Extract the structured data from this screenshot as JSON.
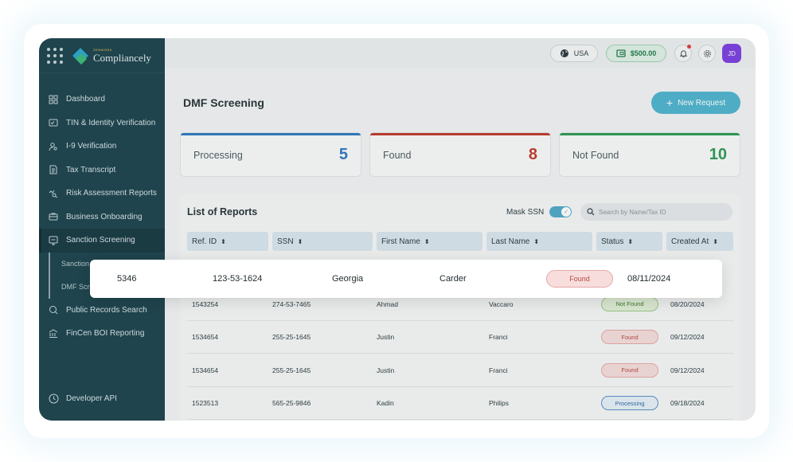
{
  "brand": {
    "small": "ZENWORK",
    "name": "Compliancely"
  },
  "sidebar": {
    "items": [
      {
        "label": "Dashboard",
        "icon": "dashboard-icon"
      },
      {
        "label": "TIN & Identity Verification",
        "icon": "id-card-icon"
      },
      {
        "label": "I-9 Verification",
        "icon": "user-search-icon"
      },
      {
        "label": "Tax Transcript",
        "icon": "document-icon"
      },
      {
        "label": "Risk Assessment Reports",
        "icon": "risk-search-icon"
      },
      {
        "label": "Business Onboarding",
        "icon": "briefcase-icon"
      },
      {
        "label": "Sanction Screening",
        "icon": "screening-icon"
      }
    ],
    "sub_items": [
      "Sanction",
      "DMF Scre"
    ],
    "more_items": [
      {
        "label": "Public Records Search",
        "icon": "globe-search-icon"
      },
      {
        "label": "FinCen BOI Reporting",
        "icon": "bank-icon"
      }
    ],
    "developer": "Developer API"
  },
  "topbar": {
    "country": "USA",
    "balance": "$500.00",
    "avatar": "JD"
  },
  "page": {
    "title": "DMF Screening",
    "new_request": "New Request"
  },
  "stats": [
    {
      "label": "Processing",
      "value": "5"
    },
    {
      "label": "Found",
      "value": "8"
    },
    {
      "label": "Not Found",
      "value": "10"
    }
  ],
  "reports": {
    "title": "List of Reports",
    "mask_label": "Mask SSN",
    "search_placeholder": "Search by Name/Tax ID",
    "columns": [
      "Ref. ID",
      "SSN",
      "First Name",
      "Last Name",
      "Status",
      "Created At"
    ],
    "rows": [
      {
        "ref": "1543254",
        "ssn": "274-53-7465",
        "first": "Ahmad",
        "last": "Vaccaro",
        "status": "Not Found",
        "created": "08/20/2024"
      },
      {
        "ref": "1534654",
        "ssn": "255-25-1645",
        "first": "Justin",
        "last": "Franci",
        "status": "Found",
        "created": "09/12/2024"
      },
      {
        "ref": "1534654",
        "ssn": "255-25-1645",
        "first": "Justin",
        "last": "Franci",
        "status": "Found",
        "created": "09/12/2024"
      },
      {
        "ref": "1523513",
        "ssn": "565-25-9846",
        "first": "Kadin",
        "last": "Philips",
        "status": "Processing",
        "created": "09/18/2024"
      }
    ]
  },
  "highlight": {
    "ref": "5346",
    "ssn": "123-53-1624",
    "first": "Georgia",
    "last": "Carder",
    "status": "Found",
    "created": "08/11/2024"
  },
  "colors": {
    "sidebar": "#1c434d",
    "accent": "#4fb5cf",
    "processing": "#2f79c2",
    "found": "#c13a2b",
    "not_found": "#2e9a55"
  }
}
